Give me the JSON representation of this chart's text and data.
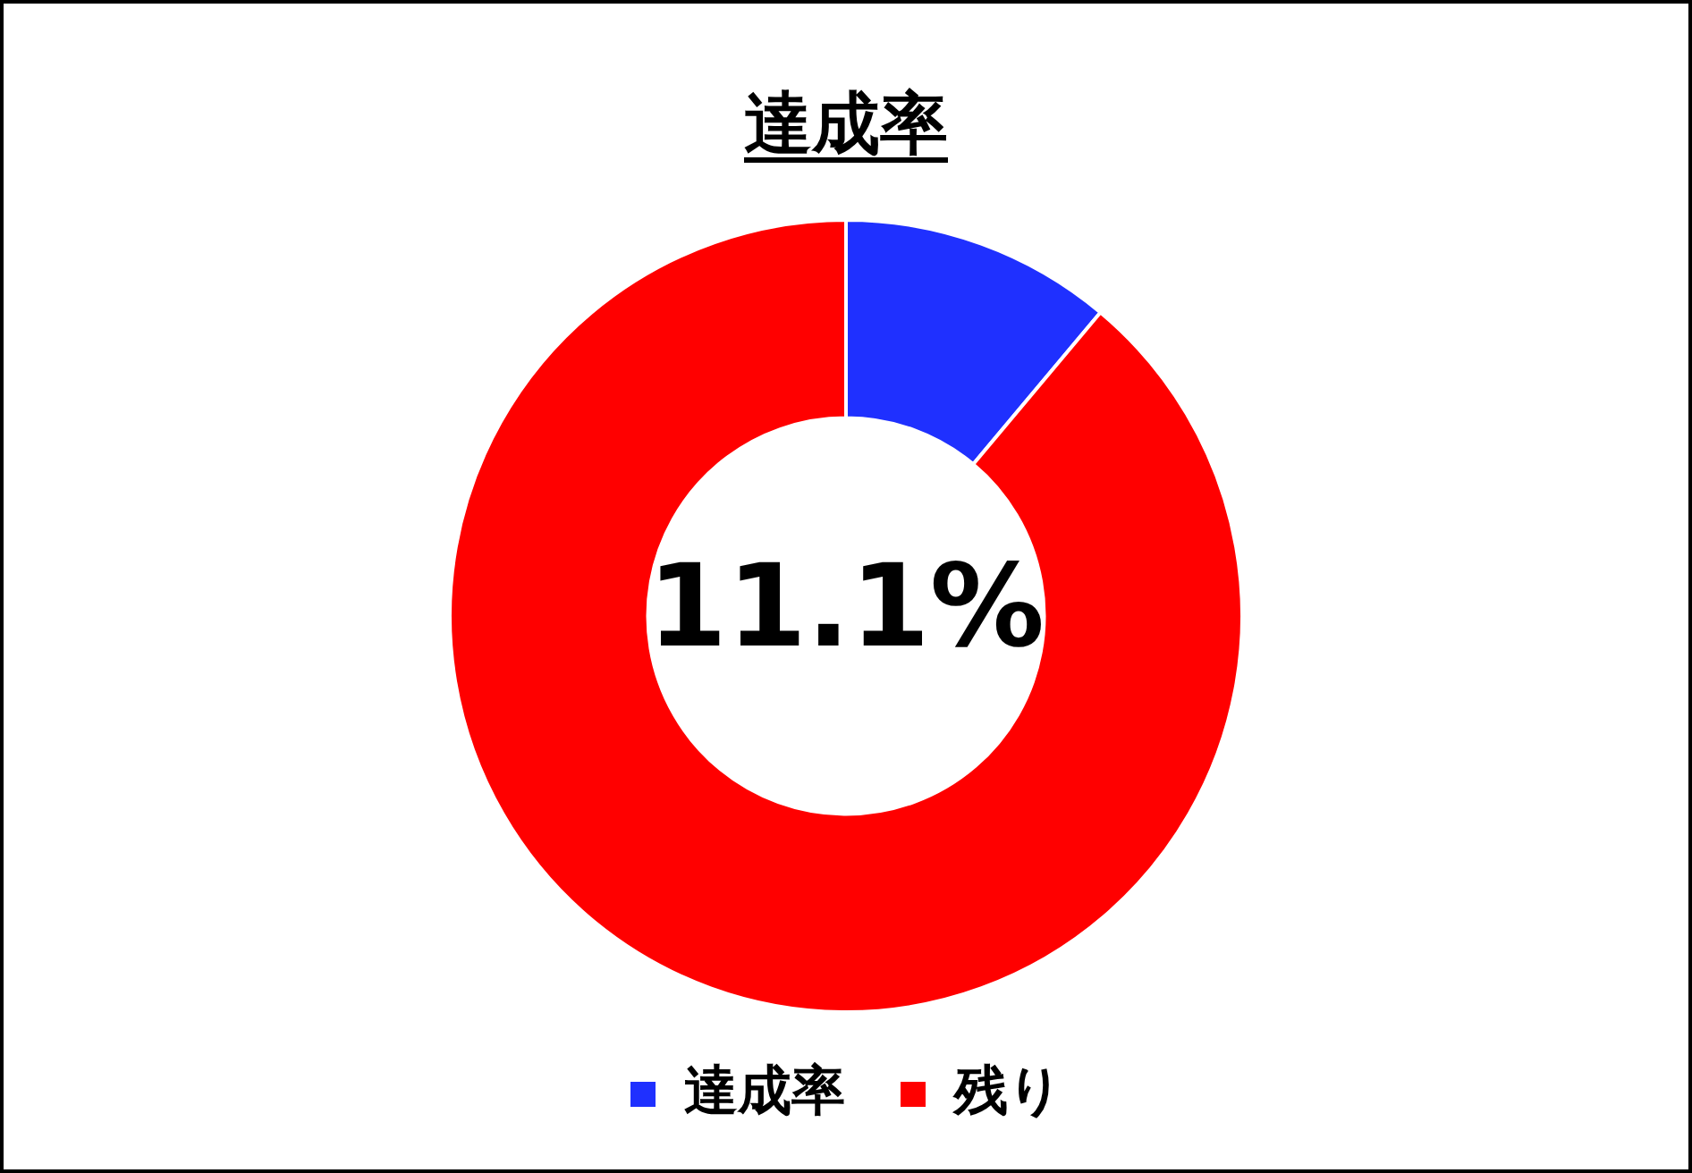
{
  "chart_data": {
    "type": "donut",
    "title": "達成率",
    "categories": [
      "達成率",
      "残り"
    ],
    "values": [
      11.1,
      88.9
    ],
    "colors": [
      "#1f30ff",
      "#ff0000"
    ],
    "annotations": [
      "11.1%"
    ],
    "legend": "bottom"
  }
}
